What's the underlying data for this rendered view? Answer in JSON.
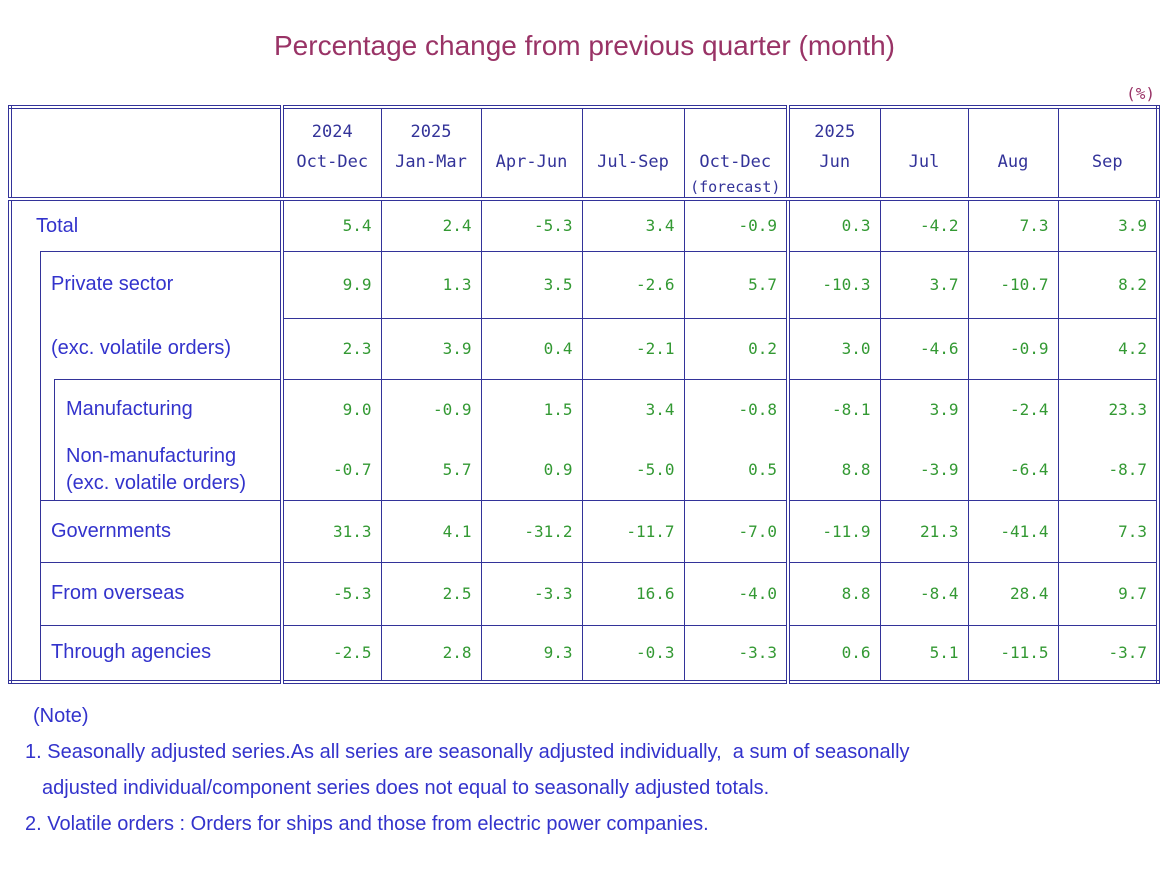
{
  "title": "Percentage change from previous quarter (month)",
  "unit_label": "(%)",
  "colors": {
    "title": "#993366",
    "border": "#333399",
    "label_text": "#3333cc",
    "header_text": "#333399",
    "value_text": "#339933"
  },
  "table": {
    "columns": [
      {
        "year": "2024",
        "period": "Oct-Dec",
        "note": ""
      },
      {
        "year": "2025",
        "period": "Jan-Mar",
        "note": ""
      },
      {
        "year": "",
        "period": "Apr-Jun",
        "note": ""
      },
      {
        "year": "",
        "period": "Jul-Sep",
        "note": ""
      },
      {
        "year": "",
        "period": "Oct-Dec",
        "note": "(forecast)"
      },
      {
        "year": "2025",
        "period": "Jun",
        "note": ""
      },
      {
        "year": "",
        "period": "Jul",
        "note": ""
      },
      {
        "year": "",
        "period": "Aug",
        "note": ""
      },
      {
        "year": "",
        "period": "Sep",
        "note": ""
      }
    ],
    "rows": [
      {
        "label": "Total",
        "label2": "",
        "level": 0,
        "section_top": false,
        "merged_with_next": false,
        "values": [
          "5.4",
          "2.4",
          "-5.3",
          "3.4",
          "-0.9",
          "0.3",
          "-4.2",
          "7.3",
          "3.9"
        ]
      },
      {
        "label": "Private sector",
        "label2": "",
        "level": 1,
        "section_top": true,
        "merged_with_next": false,
        "values": [
          "9.9",
          "1.3",
          "3.5",
          "-2.6",
          "5.7",
          "-10.3",
          "3.7",
          "-10.7",
          "8.2"
        ]
      },
      {
        "label": "(exc. volatile orders)",
        "label2": "",
        "level": 1,
        "section_top": false,
        "merged_with_next": false,
        "values": [
          "2.3",
          "3.9",
          "0.4",
          "-2.1",
          "0.2",
          "3.0",
          "-4.6",
          "-0.9",
          "4.2"
        ]
      },
      {
        "label": "Manufacturing",
        "label2": "",
        "level": 2,
        "section_top": true,
        "merged_with_next": true,
        "values": [
          "9.0",
          "-0.9",
          "1.5",
          "3.4",
          "-0.8",
          "-8.1",
          "3.9",
          "-2.4",
          "23.3"
        ]
      },
      {
        "label": "Non-manufacturing",
        "label2": "(exc. volatile orders)",
        "level": 2,
        "section_top": false,
        "merged_with_next": false,
        "values": [
          "-0.7",
          "5.7",
          "0.9",
          "-5.0",
          "0.5",
          "8.8",
          "-3.9",
          "-6.4",
          "-8.7"
        ]
      },
      {
        "label": "Governments",
        "label2": "",
        "level": 1,
        "section_top": true,
        "merged_with_next": false,
        "values": [
          "31.3",
          "4.1",
          "-31.2",
          "-11.7",
          "-7.0",
          "-11.9",
          "21.3",
          "-41.4",
          "7.3"
        ]
      },
      {
        "label": "From overseas",
        "label2": "",
        "level": 1,
        "section_top": true,
        "merged_with_next": false,
        "values": [
          "-5.3",
          "2.5",
          "-3.3",
          "16.6",
          "-4.0",
          "8.8",
          "-8.4",
          "28.4",
          "9.7"
        ]
      },
      {
        "label": "Through agencies",
        "label2": "",
        "level": 1,
        "section_top": true,
        "merged_with_next": false,
        "values": [
          "-2.5",
          "2.8",
          "9.3",
          "-0.3",
          "-3.3",
          "0.6",
          "5.1",
          "-11.5",
          "-3.7"
        ]
      }
    ]
  },
  "notes": [
    {
      "text": "(Note)"
    },
    {
      "text": "1. Seasonally adjusted series.As all series are seasonally adjusted individually,  a sum of seasonally"
    },
    {
      "text": "adjusted individual/component series does not equal to seasonally adjusted totals."
    },
    {
      "text": "2. Volatile orders : Orders for ships and those from electric power companies."
    }
  ]
}
